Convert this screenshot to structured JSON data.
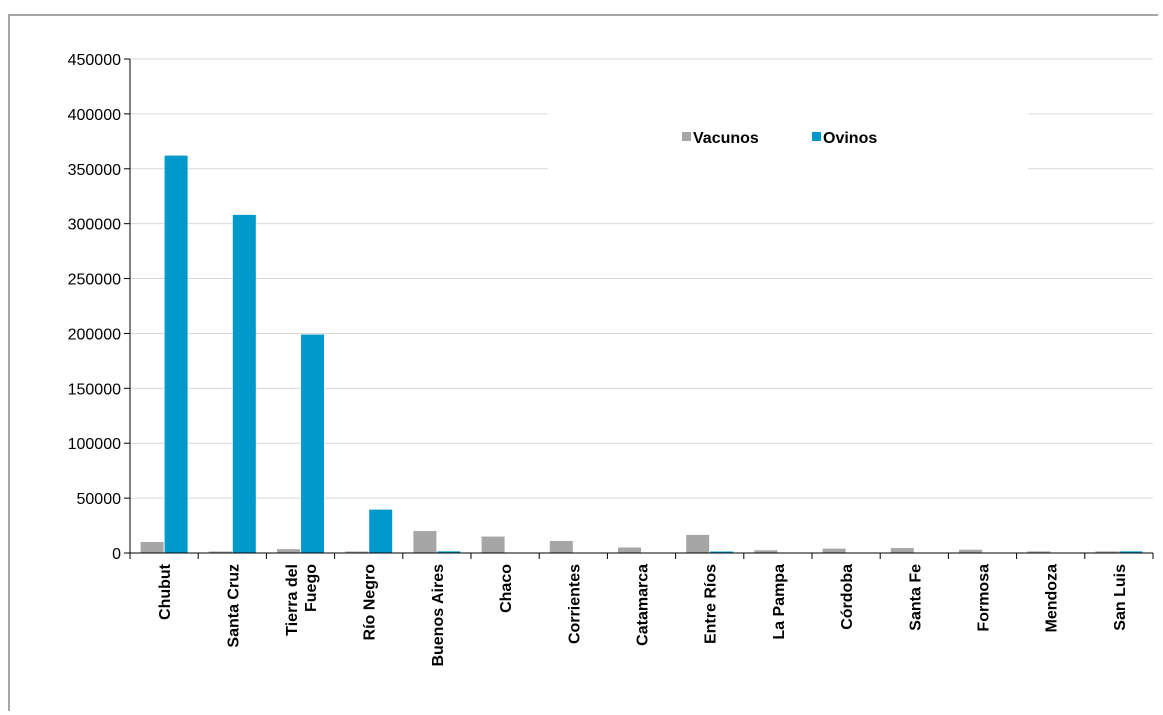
{
  "chart_data": {
    "type": "bar",
    "title": "",
    "xlabel": "",
    "ylabel": "",
    "ylim": [
      0,
      450000
    ],
    "yticks": [
      0,
      50000,
      100000,
      150000,
      200000,
      250000,
      300000,
      350000,
      400000,
      450000
    ],
    "grid": true,
    "legend_position": "top-right",
    "categories": [
      [
        "Chubut"
      ],
      [
        "Santa Cruz"
      ],
      [
        "Tierra del",
        "Fuego"
      ],
      [
        "Río Negro"
      ],
      [
        "Buenos Aires"
      ],
      [
        "Chaco"
      ],
      [
        "Corrientes"
      ],
      [
        "Catamarca"
      ],
      [
        "Entre Ríos"
      ],
      [
        "La Pampa"
      ],
      [
        "Córdoba"
      ],
      [
        "Santa Fe"
      ],
      [
        "Formosa"
      ],
      [
        "Mendoza"
      ],
      [
        "San Luis"
      ]
    ],
    "series": [
      {
        "name": "Vacunos",
        "color": "#a6a6a6",
        "values": [
          10000,
          500,
          3500,
          1000,
          20000,
          15000,
          11000,
          5000,
          16500,
          2500,
          4000,
          4500,
          3000,
          1500,
          1500
        ]
      },
      {
        "name": "Ovinos",
        "color": "#0099cc",
        "values": [
          362000,
          308000,
          199000,
          39500,
          1500,
          0,
          0,
          0,
          1000,
          0,
          0,
          0,
          0,
          0,
          1500
        ]
      }
    ]
  }
}
